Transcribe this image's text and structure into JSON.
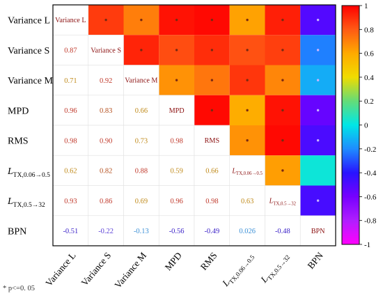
{
  "chart_data": {
    "type": "heatmap",
    "variables": [
      {
        "name": "Variance L"
      },
      {
        "name": "Variance S"
      },
      {
        "name": "Variance M"
      },
      {
        "name": "MPD"
      },
      {
        "name": "RMS"
      },
      {
        "name": "L",
        "sub": "TX,0.06→0.5"
      },
      {
        "name": "L",
        "sub": "TX,0.5→32"
      },
      {
        "name": "BPN"
      }
    ],
    "matrix": [
      [
        null,
        null,
        null,
        null,
        null,
        null,
        null,
        null
      ],
      [
        0.87,
        null,
        null,
        null,
        null,
        null,
        null,
        null
      ],
      [
        0.71,
        0.92,
        null,
        null,
        null,
        null,
        null,
        null
      ],
      [
        0.96,
        0.83,
        0.66,
        null,
        null,
        null,
        null,
        null
      ],
      [
        0.98,
        0.9,
        0.73,
        0.98,
        null,
        null,
        null,
        null
      ],
      [
        0.62,
        0.82,
        0.88,
        0.59,
        0.66,
        null,
        null,
        null
      ],
      [
        0.93,
        0.86,
        0.69,
        0.96,
        0.98,
        0.63,
        null,
        null
      ],
      [
        -0.51,
        -0.22,
        -0.13,
        -0.56,
        -0.49,
        0.026,
        -0.48,
        null
      ]
    ],
    "value_labels": [
      [
        "",
        "",
        "",
        "",
        "",
        "",
        "",
        ""
      ],
      [
        "0.87",
        "",
        "",
        "",
        "",
        "",
        "",
        ""
      ],
      [
        "0.71",
        "0.92",
        "",
        "",
        "",
        "",
        "",
        ""
      ],
      [
        "0.96",
        "0.83",
        "0.66",
        "",
        "",
        "",
        "",
        ""
      ],
      [
        "0.98",
        "0.90",
        "0.73",
        "0.98",
        "",
        "",
        "",
        ""
      ],
      [
        "0.62",
        "0.82",
        "0.88",
        "0.59",
        "0.66",
        "",
        "",
        ""
      ],
      [
        "0.93",
        "0.86",
        "0.69",
        "0.96",
        "0.98",
        "0.63",
        "",
        ""
      ],
      [
        "-0.51",
        "-0.22",
        "-0.13",
        "-0.56",
        "-0.49",
        "0.026",
        "-0.48",
        ""
      ]
    ],
    "significant": [
      [
        false,
        false,
        false,
        false,
        false,
        false,
        false,
        false
      ],
      [
        true,
        false,
        false,
        false,
        false,
        false,
        false,
        false
      ],
      [
        true,
        true,
        false,
        false,
        false,
        false,
        false,
        false
      ],
      [
        true,
        true,
        true,
        false,
        false,
        false,
        false,
        false
      ],
      [
        true,
        true,
        true,
        true,
        false,
        false,
        false,
        false
      ],
      [
        true,
        true,
        true,
        true,
        true,
        false,
        false,
        false
      ],
      [
        true,
        true,
        true,
        true,
        true,
        true,
        false,
        false
      ],
      [
        true,
        true,
        true,
        true,
        true,
        false,
        true,
        false
      ]
    ],
    "colorbar": {
      "min": -1,
      "max": 1,
      "ticks": [
        "-1",
        "-0.8",
        "-0.6",
        "-0.4",
        "-0.2",
        "0",
        "0.2",
        "0.4",
        "0.6",
        "0.8",
        "1"
      ]
    },
    "significance_note": "* p<=0. 05"
  }
}
